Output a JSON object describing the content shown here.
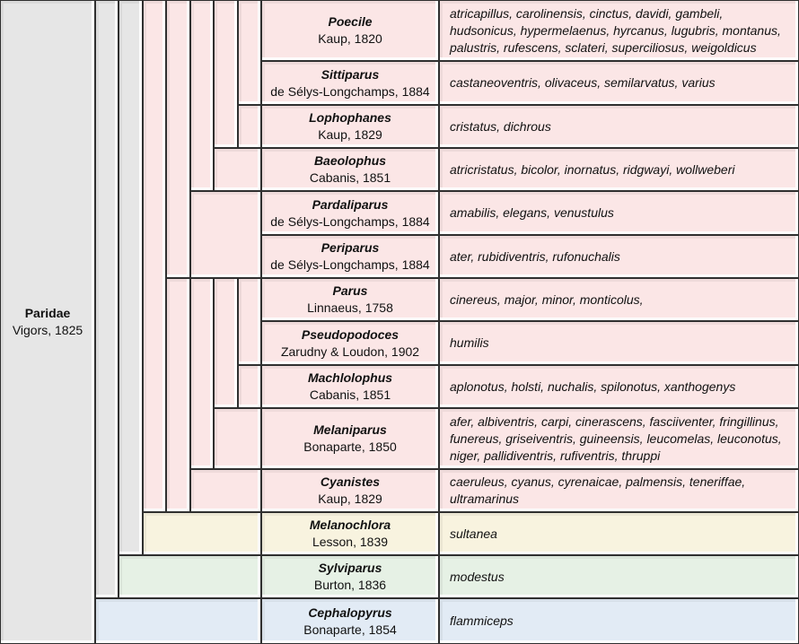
{
  "family": {
    "name": "Paridae",
    "authority": "Vigors, 1825"
  },
  "genera": [
    {
      "name": "Poecile",
      "authority": "Kaup, 1820",
      "species": "atricapillus, carolinensis, cinctus, davidi, gambeli, hudsonicus, hypermelaenus, hyrcanus, lugubris, montanus, palustris, rufescens, sclateri, superciliosus, weigoldicus",
      "color": "#fbe6e6"
    },
    {
      "name": "Sittiparus",
      "authority": "de Sélys-Longchamps, 1884",
      "species": "castaneoventris, olivaceus, semilarvatus, varius",
      "color": "#fbe6e6"
    },
    {
      "name": "Lophophanes",
      "authority": "Kaup, 1829",
      "species": "cristatus, dichrous",
      "color": "#fbe6e6"
    },
    {
      "name": "Baeolophus",
      "authority": "Cabanis, 1851",
      "species": "atricristatus, bicolor, inornatus, ridgwayi, wollweberi",
      "color": "#fbe6e6"
    },
    {
      "name": "Pardaliparus",
      "authority": "de Sélys-Longchamps, 1884",
      "species": "amabilis, elegans, venustulus",
      "color": "#fbe6e6"
    },
    {
      "name": "Periparus",
      "authority": "de Sélys-Longchamps, 1884",
      "species": "ater, rubidiventris, rufonuchalis",
      "color": "#fbe6e6"
    },
    {
      "name": "Parus",
      "authority": "Linnaeus, 1758",
      "species": "cinereus, major, minor, monticolus,",
      "color": "#fbe6e6"
    },
    {
      "name": "Pseudopodoces",
      "authority": "Zarudny & Loudon, 1902",
      "species": "humilis",
      "color": "#fbe6e6"
    },
    {
      "name": "Machlolophus",
      "authority": "Cabanis, 1851",
      "species": "aplonotus, holsti, nuchalis, spilonotus, xanthogenys",
      "color": "#fbe6e6"
    },
    {
      "name": "Melaniparus",
      "authority": "Bonaparte, 1850",
      "species": "afer, albiventris, carpi, cinerascens, fasciiventer, fringillinus, funereus, griseiventris, guineensis, leucomelas, leuconotus, niger, pallidiventris, rufiventris, thruppi",
      "color": "#fbe6e6"
    },
    {
      "name": "Cyanistes",
      "authority": "Kaup, 1829",
      "species": "caeruleus, cyanus, cyrenaicae, palmensis, teneriffae, ultramarinus",
      "color": "#fbe6e6"
    },
    {
      "name": "Melanochlora",
      "authority": "Lesson, 1839",
      "species": "sultanea",
      "color": "#f8f3df"
    },
    {
      "name": "Sylviparus",
      "authority": "Burton, 1836",
      "species": "modestus",
      "color": "#e6f1e5"
    },
    {
      "name": "Cephalopyrus",
      "authority": "Bonaparte, 1854",
      "species": "flammiceps",
      "color": "#e2ebf5"
    }
  ]
}
